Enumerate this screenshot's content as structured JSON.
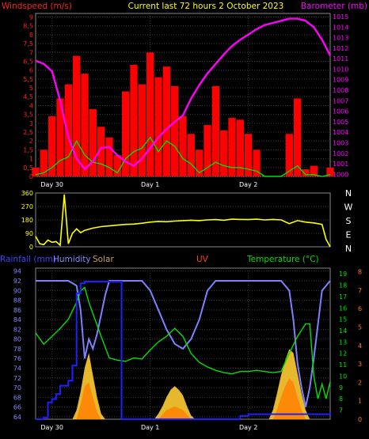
{
  "chart_data": [
    {
      "type": "line",
      "panel": "wind-barometer",
      "title": "Current last 72 hours 2 October 2023",
      "ylabel_left": "Windspeed (m/s)",
      "ylabel_right": "Barometer (mb)",
      "y_left_ticks": [
        "0",
        "0,5",
        "1",
        "1,5",
        "2",
        "2,5",
        "3",
        "3,5",
        "4",
        "4,5",
        "5",
        "5,5",
        "6",
        "6,5",
        "7",
        "7,5",
        "8",
        "8,5",
        "9"
      ],
      "y_right_ticks": [
        "1000",
        "1001",
        "1002",
        "1003",
        "1004",
        "1005",
        "1006",
        "1007",
        "1008",
        "1009",
        "1010",
        "1011",
        "1012",
        "1013",
        "1014",
        "1015"
      ],
      "x_ticks": [
        "Day 30",
        "Day 1",
        "Day 2"
      ],
      "ylim_left": [
        0,
        9.2
      ],
      "ylim_right": [
        999.8,
        1015.3
      ],
      "grid": true,
      "series": [
        {
          "kind": "gust",
          "color": "#ff0000",
          "x": [
            0,
            2,
            4,
            6,
            8,
            10,
            12,
            14,
            16,
            18,
            20,
            22,
            24,
            26,
            28,
            30,
            32,
            34,
            36,
            38,
            40,
            42,
            44,
            46,
            48,
            50,
            52,
            54,
            56,
            58,
            60,
            62,
            64,
            66,
            68,
            70,
            72
          ],
          "values": [
            0.5,
            1.5,
            3.4,
            4.4,
            5.2,
            6.8,
            5.8,
            3.8,
            2.8,
            2.2,
            1.2,
            4.8,
            6.3,
            5.2,
            7.0,
            5.6,
            6.2,
            5.1,
            3.4,
            2.4,
            1.5,
            2.9,
            5.1,
            2.6,
            3.3,
            3.2,
            2.4,
            1.5,
            0,
            0,
            0,
            2.4,
            4.4,
            0.4,
            0.6,
            0,
            0.5
          ]
        },
        {
          "kind": "average",
          "color": "#00e000",
          "x": [
            0,
            2,
            4,
            6,
            8,
            10,
            12,
            14,
            16,
            18,
            20,
            22,
            24,
            26,
            28,
            30,
            32,
            34,
            36,
            38,
            40,
            42,
            44,
            46,
            48,
            50,
            52,
            54,
            56,
            58,
            60,
            62,
            64,
            66,
            68,
            70,
            72
          ],
          "values": [
            0.1,
            0.2,
            0.5,
            0.9,
            1.1,
            2.0,
            1.2,
            0.8,
            0.7,
            0.5,
            0.2,
            1.0,
            1.4,
            1.6,
            2.2,
            1.4,
            2.0,
            1.7,
            1.0,
            0.7,
            0.2,
            0.5,
            0.8,
            0.6,
            0.5,
            0.5,
            0.4,
            0.3,
            0,
            0,
            0,
            0.3,
            0.6,
            0.1,
            0.1,
            0,
            0.1
          ]
        },
        {
          "kind": "barometer",
          "color": "#ff00ff",
          "x": [
            0,
            2,
            4,
            6,
            8,
            10,
            12,
            14,
            16,
            18,
            20,
            22,
            24,
            26,
            28,
            30,
            32,
            34,
            36,
            38,
            40,
            42,
            44,
            46,
            48,
            50,
            52,
            54,
            56,
            58,
            60,
            62,
            64,
            66,
            68,
            70,
            72
          ],
          "values": [
            1010.8,
            1010.5,
            1009.8,
            1007.0,
            1003.5,
            1001.5,
            1000.5,
            1001.2,
            1002.5,
            1002.6,
            1001.8,
            1001.2,
            1000.8,
            1001.5,
            1002.5,
            1003.5,
            1004.3,
            1005.0,
            1005.6,
            1007.2,
            1008.5,
            1009.6,
            1010.5,
            1011.4,
            1012.2,
            1012.8,
            1013.3,
            1013.8,
            1014.2,
            1014.4,
            1014.6,
            1014.8,
            1014.8,
            1014.6,
            1014.0,
            1012.8,
            1011.3
          ]
        }
      ]
    },
    {
      "type": "line",
      "panel": "wind-direction",
      "y_left_ticks": [
        "0",
        "90",
        "180",
        "270",
        "360"
      ],
      "y_right_labels": [
        "N",
        "W",
        "S",
        "E",
        "N"
      ],
      "ylim": [
        0,
        360
      ],
      "series": [
        {
          "kind": "direction",
          "color": "#ffff00",
          "x": [
            0,
            1,
            2,
            3,
            4,
            5,
            6,
            7,
            8,
            9,
            10,
            11,
            12,
            14,
            16,
            18,
            20,
            22,
            24,
            26,
            28,
            30,
            32,
            34,
            36,
            38,
            40,
            42,
            44,
            46,
            48,
            50,
            52,
            54,
            56,
            58,
            60,
            62,
            64,
            66,
            68,
            70,
            71,
            72
          ],
          "values": [
            70,
            20,
            15,
            45,
            30,
            35,
            10,
            350,
            20,
            90,
            120,
            95,
            110,
            125,
            135,
            140,
            145,
            150,
            152,
            158,
            165,
            170,
            168,
            172,
            175,
            178,
            175,
            180,
            182,
            178,
            185,
            183,
            182,
            185,
            180,
            183,
            180,
            155,
            175,
            165,
            160,
            150,
            50,
            0
          ]
        }
      ]
    },
    {
      "type": "line",
      "panel": "rain-humidity-solar-uv-temp",
      "legend": [
        "Rainfall (mm)",
        "Humidity",
        "Solar",
        "UV",
        "Temperature (°C)"
      ],
      "y_left_ticks": [
        "64",
        "66",
        "68",
        "70",
        "72",
        "74",
        "76",
        "78",
        "80",
        "82",
        "84",
        "86",
        "88",
        "90",
        "92",
        "94"
      ],
      "y_right_ticks": [
        "7",
        "8",
        "9",
        "10",
        "11",
        "12",
        "13",
        "14",
        "15",
        "16",
        "17",
        "18",
        "19"
      ],
      "y_far_right_ticks": [
        "0",
        "1",
        "2",
        "3",
        "4",
        "5",
        "6",
        "7",
        "8"
      ],
      "x_ticks": [
        "Day 30",
        "Day 1",
        "Day 2"
      ],
      "ylim_humidity": [
        63.5,
        94.6
      ],
      "ylim_temp": [
        6.2,
        19.5
      ],
      "ylim_uv": [
        0,
        8.2
      ],
      "ylim_rain": [
        0,
        9
      ],
      "series": [
        {
          "kind": "humidity",
          "color": "#8080ff",
          "x": [
            0,
            2,
            4,
            6,
            8,
            10,
            11,
            12,
            13,
            14,
            15,
            16,
            17,
            18,
            20,
            22,
            24,
            26,
            28,
            30,
            32,
            34,
            36,
            38,
            40,
            42,
            44,
            46,
            48,
            50,
            52,
            54,
            56,
            58,
            60,
            62,
            63,
            64,
            65,
            66,
            67,
            68,
            70,
            72
          ],
          "values": [
            92,
            92,
            92,
            92,
            92,
            91,
            86,
            76,
            80,
            78,
            81,
            85,
            89,
            92,
            92,
            92,
            92,
            92,
            90,
            86,
            82,
            79,
            78,
            80,
            84,
            90,
            92,
            92,
            92,
            92,
            92,
            92,
            92,
            92,
            92,
            90,
            84,
            75,
            70,
            66,
            70,
            76,
            90,
            92
          ]
        },
        {
          "kind": "temperature",
          "color": "#00e000",
          "x": [
            0,
            2,
            4,
            6,
            8,
            10,
            11,
            12,
            13,
            14,
            15,
            16,
            18,
            20,
            22,
            24,
            26,
            28,
            30,
            32,
            34,
            36,
            38,
            40,
            42,
            44,
            46,
            48,
            50,
            52,
            54,
            56,
            58,
            60,
            62,
            64,
            66,
            67,
            68,
            69,
            70,
            71,
            72
          ],
          "values": [
            13.8,
            12.8,
            13.5,
            14.2,
            15.0,
            16.5,
            17.5,
            17.8,
            16.5,
            15.5,
            14.5,
            13.5,
            11.6,
            11.4,
            11.3,
            11.6,
            11.5,
            12.3,
            13.0,
            13.5,
            14.2,
            13.5,
            12.0,
            11.2,
            10.8,
            10.5,
            10.3,
            10.2,
            10.4,
            10.4,
            10.5,
            10.4,
            10.3,
            10.4,
            12.0,
            13.5,
            14.6,
            14.6,
            10.0,
            8.0,
            9.3,
            8.0,
            9.5
          ]
        },
        {
          "kind": "rainfall",
          "color": "#2020ff",
          "x": [
            0,
            1,
            2,
            3,
            4,
            5,
            6,
            7,
            8,
            9,
            10,
            11,
            12,
            14,
            16,
            18,
            20,
            21,
            22,
            24,
            26,
            28,
            30,
            32,
            34,
            36,
            38,
            40,
            42,
            44,
            46,
            48,
            50,
            52,
            54,
            56,
            58,
            60,
            62,
            64,
            66,
            68,
            70,
            72
          ],
          "values": [
            0,
            0,
            0.1,
            1.0,
            1.2,
            1.5,
            2.0,
            2.0,
            2.3,
            3.2,
            7.5,
            8.1,
            8.2,
            8.2,
            8.2,
            8.2,
            8.2,
            0,
            0,
            0,
            0,
            0,
            0,
            0,
            0,
            0,
            0,
            0,
            0,
            0,
            0,
            0,
            0.2,
            0.3,
            0.3,
            0.3,
            0.3,
            0.3,
            0.3,
            0.3,
            0.3,
            0.3,
            0.3,
            0.4
          ]
        },
        {
          "kind": "solar",
          "color": "#ffcc33",
          "x": [
            0,
            1,
            2,
            3,
            4,
            5,
            6,
            7,
            8,
            9,
            10,
            11,
            12,
            13,
            14,
            15,
            16,
            17,
            18,
            19,
            20,
            21,
            22,
            23,
            24,
            25,
            26,
            27,
            28,
            29,
            30,
            31,
            32,
            33,
            34,
            35,
            36,
            37,
            38,
            39,
            40,
            41,
            42,
            43,
            44,
            45,
            46,
            47,
            48,
            49,
            50,
            51,
            52,
            53,
            54,
            55,
            56,
            57,
            58,
            59,
            60,
            61,
            62,
            63,
            64,
            65,
            66,
            67,
            68,
            69,
            70,
            71,
            72
          ],
          "values": [
            0,
            0,
            0,
            0,
            0,
            0,
            0,
            0,
            0,
            0,
            0.5,
            1.5,
            2.8,
            3.6,
            2.4,
            1.2,
            0.3,
            0,
            0,
            0,
            0,
            0,
            0,
            0,
            0,
            0,
            0,
            0,
            0,
            0,
            0.3,
            0.7,
            1.2,
            1.6,
            1.8,
            1.6,
            1.3,
            0.7,
            0.2,
            0,
            0,
            0,
            0,
            0,
            0,
            0,
            0,
            0,
            0,
            0,
            0,
            0,
            0,
            0,
            0,
            0,
            0,
            0,
            0.5,
            1.4,
            2.4,
            3.2,
            3.8,
            3.6,
            2.5,
            1.4,
            0.5,
            0,
            0,
            0,
            0,
            0,
            0
          ]
        },
        {
          "kind": "uv",
          "color": "#ff8000",
          "x": [
            0,
            10,
            11,
            12,
            13,
            14,
            15,
            16,
            17,
            30,
            32,
            34,
            35,
            36,
            38,
            40,
            58,
            59,
            60,
            61,
            62,
            63,
            64,
            65,
            66,
            67,
            72
          ],
          "values": [
            0,
            0,
            0.8,
            1.8,
            2.0,
            1.2,
            0.4,
            0,
            0,
            0,
            0.5,
            0.7,
            0.6,
            0.5,
            0,
            0,
            0,
            0.5,
            1.2,
            1.8,
            2.2,
            2.0,
            1.2,
            0.5,
            0,
            0,
            0
          ]
        }
      ]
    }
  ]
}
